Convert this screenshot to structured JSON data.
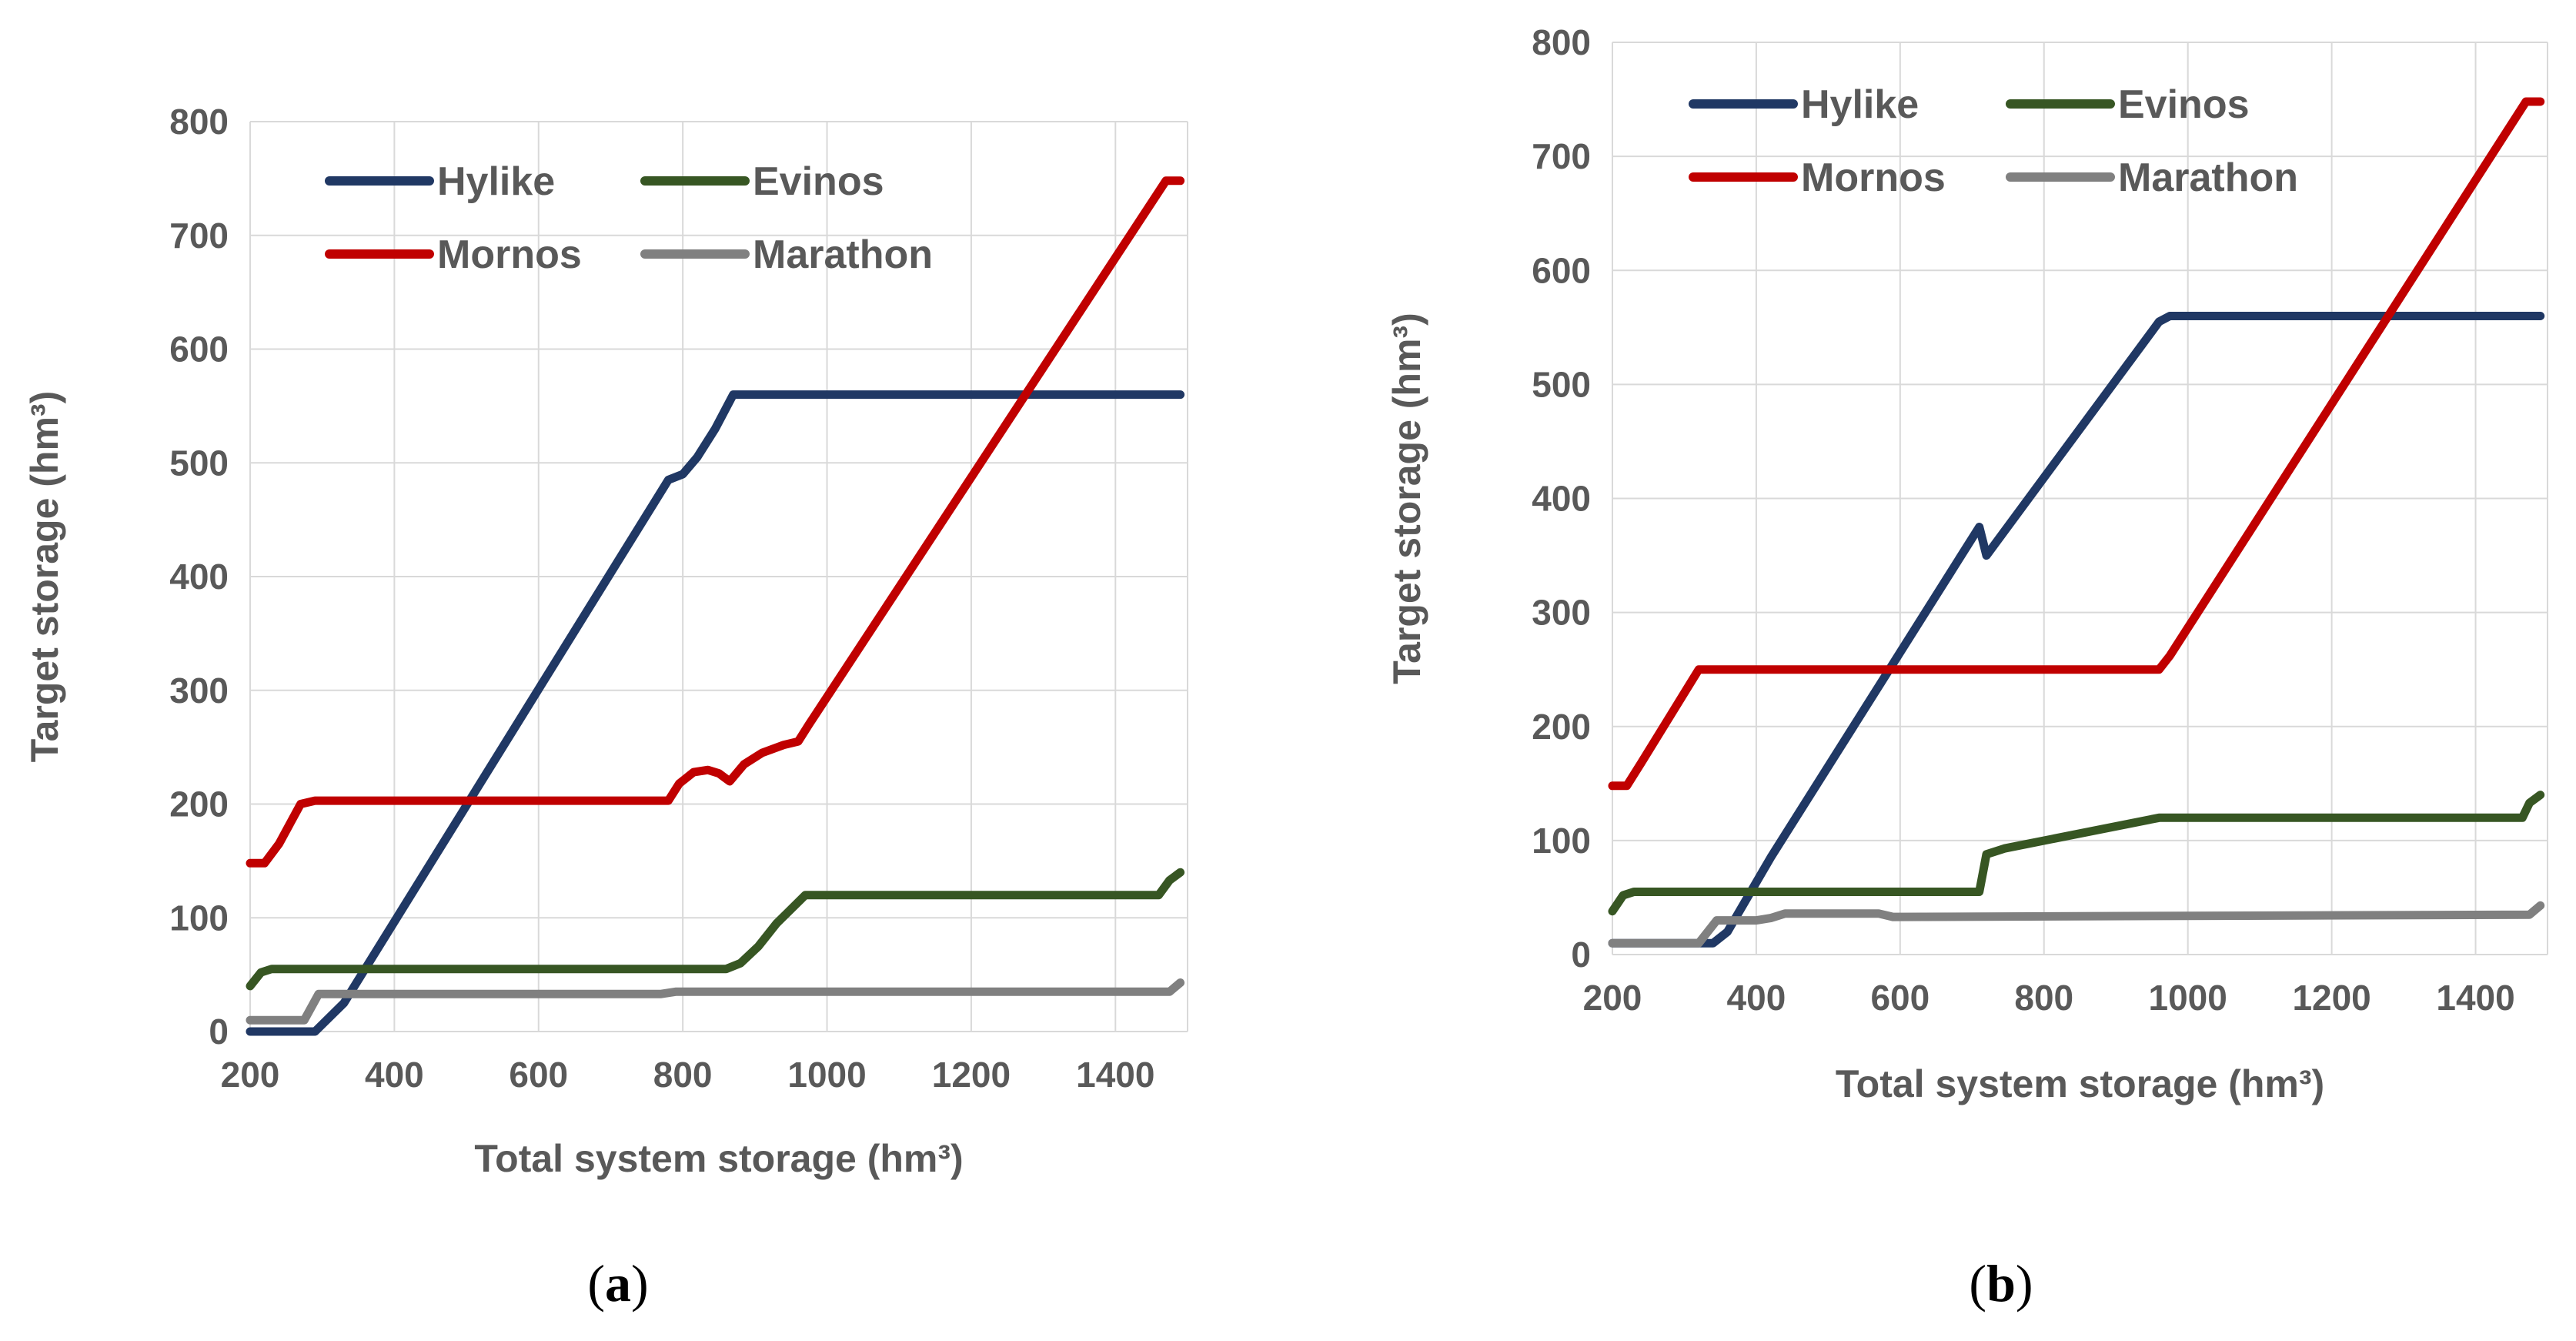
{
  "chart_data": [
    {
      "panel": "a",
      "caption_letter": "a",
      "type": "line",
      "xlabel": "Total system storage (hm³)",
      "ylabel": "Target storage (hm³)",
      "xlim": [
        200,
        1500
      ],
      "ylim": [
        0,
        800
      ],
      "xticks": [
        200,
        400,
        600,
        800,
        1000,
        1200,
        1400
      ],
      "yticks": [
        0,
        100,
        200,
        300,
        400,
        500,
        600,
        700,
        800
      ],
      "grid": true,
      "legend_position": "top",
      "series": [
        {
          "name": "Hylike",
          "color": "#203864",
          "points": [
            [
              200,
              0
            ],
            [
              290,
              0
            ],
            [
              330,
              25
            ],
            [
              780,
              485
            ],
            [
              800,
              490
            ],
            [
              820,
              505
            ],
            [
              845,
              530
            ],
            [
              870,
              560
            ],
            [
              1490,
              560
            ]
          ]
        },
        {
          "name": "Evinos",
          "color": "#375623",
          "points": [
            [
              200,
              40
            ],
            [
              215,
              52
            ],
            [
              230,
              55
            ],
            [
              860,
              55
            ],
            [
              880,
              60
            ],
            [
              905,
              75
            ],
            [
              930,
              95
            ],
            [
              970,
              120
            ],
            [
              1460,
              120
            ],
            [
              1475,
              133
            ],
            [
              1490,
              140
            ]
          ]
        },
        {
          "name": "Mornos",
          "color": "#C00000",
          "points": [
            [
              200,
              148
            ],
            [
              220,
              148
            ],
            [
              240,
              165
            ],
            [
              270,
              200
            ],
            [
              290,
              203
            ],
            [
              780,
              203
            ],
            [
              795,
              218
            ],
            [
              815,
              228
            ],
            [
              835,
              230
            ],
            [
              850,
              227
            ],
            [
              865,
              220
            ],
            [
              885,
              235
            ],
            [
              910,
              245
            ],
            [
              940,
              252
            ],
            [
              960,
              255
            ],
            [
              975,
              270
            ],
            [
              1470,
              748
            ],
            [
              1490,
              748
            ]
          ]
        },
        {
          "name": "Marathon",
          "color": "#808080",
          "points": [
            [
              200,
              10
            ],
            [
              275,
              10
            ],
            [
              295,
              33
            ],
            [
              770,
              33
            ],
            [
              790,
              35
            ],
            [
              1475,
              35
            ],
            [
              1490,
              43
            ]
          ]
        }
      ]
    },
    {
      "panel": "b",
      "caption_letter": "b",
      "type": "line",
      "xlabel": "Total system storage (hm³)",
      "ylabel": "Target storage (hm³)",
      "xlim": [
        200,
        1500
      ],
      "ylim": [
        0,
        800
      ],
      "xticks": [
        200,
        400,
        600,
        800,
        1000,
        1200,
        1400
      ],
      "yticks": [
        0,
        100,
        200,
        300,
        400,
        500,
        600,
        700,
        800
      ],
      "grid": true,
      "legend_position": "top",
      "series": [
        {
          "name": "Hylike",
          "color": "#203864",
          "points": [
            [
              200,
              10
            ],
            [
              340,
              10
            ],
            [
              360,
              20
            ],
            [
              420,
              85
            ],
            [
              710,
              375
            ],
            [
              720,
              350
            ],
            [
              960,
              555
            ],
            [
              975,
              560
            ],
            [
              1490,
              560
            ]
          ]
        },
        {
          "name": "Evinos",
          "color": "#375623",
          "points": [
            [
              200,
              38
            ],
            [
              215,
              52
            ],
            [
              230,
              55
            ],
            [
              700,
              55
            ],
            [
              710,
              55
            ],
            [
              720,
              88
            ],
            [
              745,
              93
            ],
            [
              960,
              120
            ],
            [
              1465,
              120
            ],
            [
              1475,
              133
            ],
            [
              1490,
              140
            ]
          ]
        },
        {
          "name": "Mornos",
          "color": "#C00000",
          "points": [
            [
              200,
              148
            ],
            [
              220,
              148
            ],
            [
              240,
              168
            ],
            [
              320,
              250
            ],
            [
              335,
              250
            ],
            [
              960,
              250
            ],
            [
              975,
              262
            ],
            [
              1470,
              748
            ],
            [
              1490,
              748
            ]
          ]
        },
        {
          "name": "Marathon",
          "color": "#808080",
          "points": [
            [
              200,
              10
            ],
            [
              320,
              10
            ],
            [
              345,
              30
            ],
            [
              400,
              30
            ],
            [
              420,
              32
            ],
            [
              440,
              36
            ],
            [
              570,
              36
            ],
            [
              590,
              33
            ],
            [
              1475,
              35
            ],
            [
              1490,
              43
            ]
          ]
        }
      ]
    }
  ]
}
